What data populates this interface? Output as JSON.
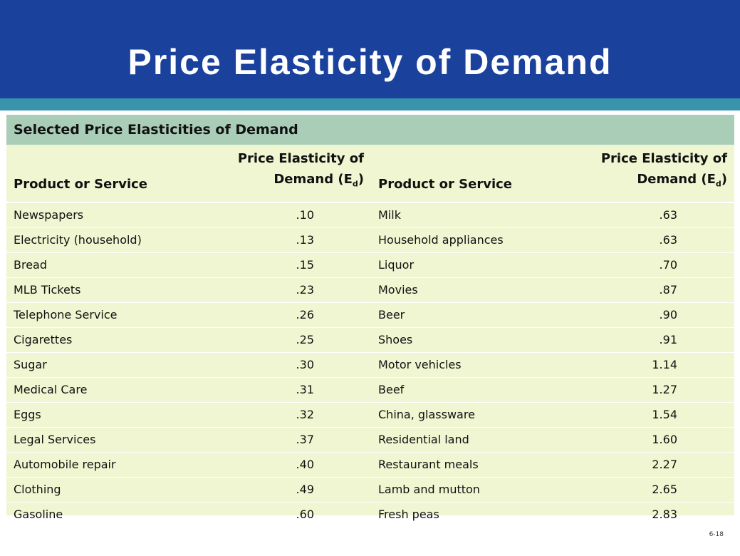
{
  "slide": {
    "title": "Price Elasticity of Demand",
    "page_number": "6-18"
  },
  "table": {
    "caption": "Selected Price Elasticities of Demand",
    "headers": {
      "product": "Product or Service",
      "elasticity_line1": "Price Elasticity of",
      "elasticity_line2": "Demand (E",
      "elasticity_sub": "d",
      "elasticity_end": ")"
    },
    "left": [
      {
        "product": "Newspapers",
        "elasticity": ".10"
      },
      {
        "product": "Electricity (household)",
        "elasticity": ".13"
      },
      {
        "product": "Bread",
        "elasticity": ".15"
      },
      {
        "product": "MLB Tickets",
        "elasticity": ".23"
      },
      {
        "product": "Telephone Service",
        "elasticity": ".26"
      },
      {
        "product": "Cigarettes",
        "elasticity": ".25"
      },
      {
        "product": "Sugar",
        "elasticity": ".30"
      },
      {
        "product": "Medical Care",
        "elasticity": ".31"
      },
      {
        "product": "Eggs",
        "elasticity": ".32"
      },
      {
        "product": "Legal Services",
        "elasticity": ".37"
      },
      {
        "product": "Automobile repair",
        "elasticity": ".40"
      },
      {
        "product": "Clothing",
        "elasticity": ".49"
      },
      {
        "product": "Gasoline",
        "elasticity": ".60"
      }
    ],
    "right": [
      {
        "product": "Milk",
        "elasticity": ".63"
      },
      {
        "product": "Household appliances",
        "elasticity": ".63"
      },
      {
        "product": "Liquor",
        "elasticity": ".70"
      },
      {
        "product": "Movies",
        "elasticity": ".87"
      },
      {
        "product": "Beer",
        "elasticity": ".90"
      },
      {
        "product": "Shoes",
        "elasticity": ".91"
      },
      {
        "product": "Motor vehicles",
        "elasticity": "1.14"
      },
      {
        "product": "Beef",
        "elasticity": "1.27"
      },
      {
        "product": "China, glassware",
        "elasticity": "1.54"
      },
      {
        "product": "Residential land",
        "elasticity": "1.60"
      },
      {
        "product": "Restaurant meals",
        "elasticity": "2.27"
      },
      {
        "product": "Lamb and mutton",
        "elasticity": "2.65"
      },
      {
        "product": "Fresh peas",
        "elasticity": "2.83"
      }
    ]
  },
  "colors": {
    "header_blue": "#1a419c",
    "band_teal": "#3893ad",
    "caption_green": "#a9cdb7",
    "table_bg": "#f0f6d1"
  }
}
